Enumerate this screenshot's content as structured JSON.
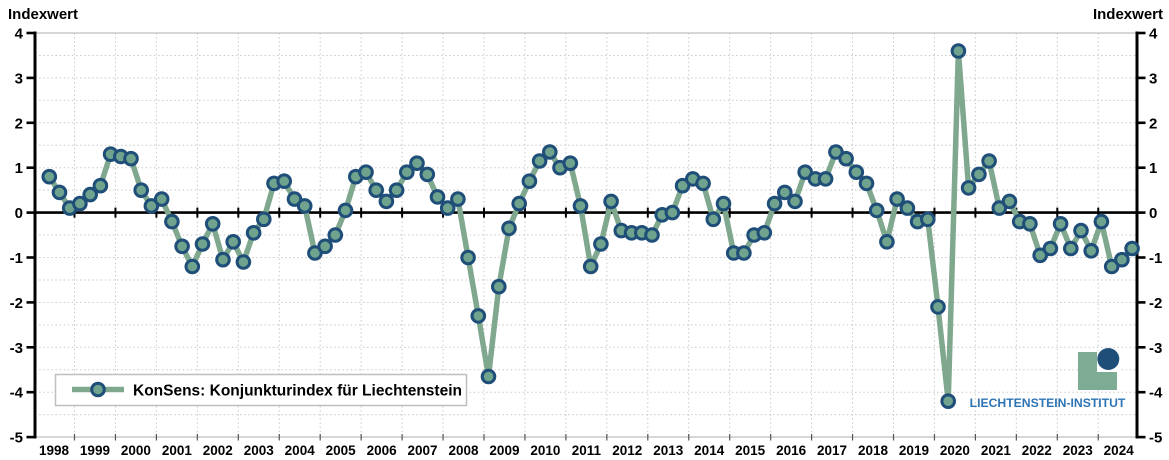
{
  "header": {
    "axis_title_left": "Indexwert",
    "axis_title_right": "Indexwert"
  },
  "legend": {
    "label": "KonSens: Konjunkturindex für Liechtenstein"
  },
  "logo": {
    "text": "LIECHTENSTEIN-INSTITUT"
  },
  "colors": {
    "line_green": "#7FA88E",
    "marker_fill": "#6FA38D",
    "marker_border": "#1F4E79",
    "logo_green": "#7EAB93",
    "logo_circle": "#1F4E79",
    "logo_text_blue": "#2E74B5",
    "grid_gray": "#c8c8c8",
    "border_gray": "#bfbfbf",
    "axis_black": "#000000"
  },
  "chart_data": {
    "type": "line",
    "title": "",
    "ylabel": "Indexwert",
    "xlabel": "",
    "ylim": [
      -5,
      4
    ],
    "grid": true,
    "legend_position": "bottom-left",
    "y_ticks": [
      4,
      3,
      2,
      1,
      0,
      -1,
      -2,
      -3,
      -4,
      -5
    ],
    "x_years": [
      1998,
      1999,
      2000,
      2001,
      2002,
      2003,
      2004,
      2005,
      2006,
      2007,
      2008,
      2009,
      2010,
      2011,
      2012,
      2013,
      2014,
      2015,
      2016,
      2017,
      2018,
      2019,
      2020,
      2021,
      2022,
      2023,
      2024
    ],
    "frequency": "quarterly",
    "start": "1998-Q1",
    "end": "2024-Q3",
    "series": [
      {
        "name": "KonSens: Konjunkturindex für Liechtenstein",
        "values": [
          0.8,
          0.45,
          0.1,
          0.2,
          0.4,
          0.6,
          1.3,
          1.25,
          1.2,
          0.5,
          0.15,
          0.3,
          -0.2,
          -0.75,
          -1.2,
          -0.7,
          -0.25,
          -1.05,
          -0.65,
          -1.1,
          -0.45,
          -0.15,
          0.65,
          0.7,
          0.3,
          0.15,
          -0.9,
          -0.75,
          -0.5,
          0.05,
          0.8,
          0.9,
          0.5,
          0.25,
          0.5,
          0.9,
          1.1,
          0.85,
          0.35,
          0.1,
          0.3,
          -1.0,
          -2.3,
          -3.65,
          -1.65,
          -0.35,
          0.2,
          0.7,
          1.15,
          1.35,
          1.0,
          1.1,
          0.15,
          -1.2,
          -0.7,
          0.25,
          -0.4,
          -0.45,
          -0.45,
          -0.5,
          -0.05,
          0.0,
          0.6,
          0.75,
          0.65,
          -0.15,
          0.2,
          -0.9,
          -0.9,
          -0.5,
          -0.45,
          0.2,
          0.45,
          0.25,
          0.9,
          0.75,
          0.75,
          1.35,
          1.2,
          0.9,
          0.65,
          0.05,
          -0.65,
          0.3,
          0.1,
          -0.2,
          -0.15,
          -2.1,
          -4.2,
          3.6,
          0.55,
          0.85,
          1.15,
          0.1,
          0.25,
          -0.2,
          -0.25,
          -0.95,
          -0.8,
          -0.25,
          -0.8,
          -0.4,
          -0.85,
          -0.2,
          -1.2,
          -1.05,
          -0.8
        ]
      }
    ]
  }
}
